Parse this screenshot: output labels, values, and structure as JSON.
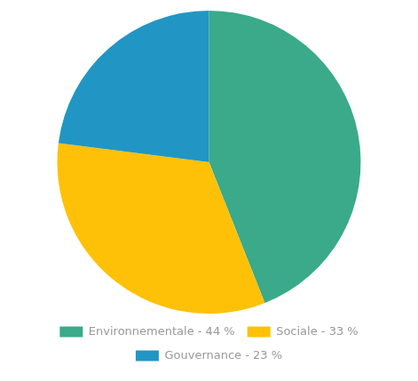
{
  "chart_data": {
    "type": "pie",
    "categories": [
      "Environnementale - 44 %",
      "Sociale - 33 %",
      "Gouvernance - 23 %"
    ],
    "values": [
      44,
      33,
      23
    ],
    "colors": [
      "#3aaa8a",
      "#ffc107",
      "#2196c4"
    ],
    "legend": "bottom"
  }
}
